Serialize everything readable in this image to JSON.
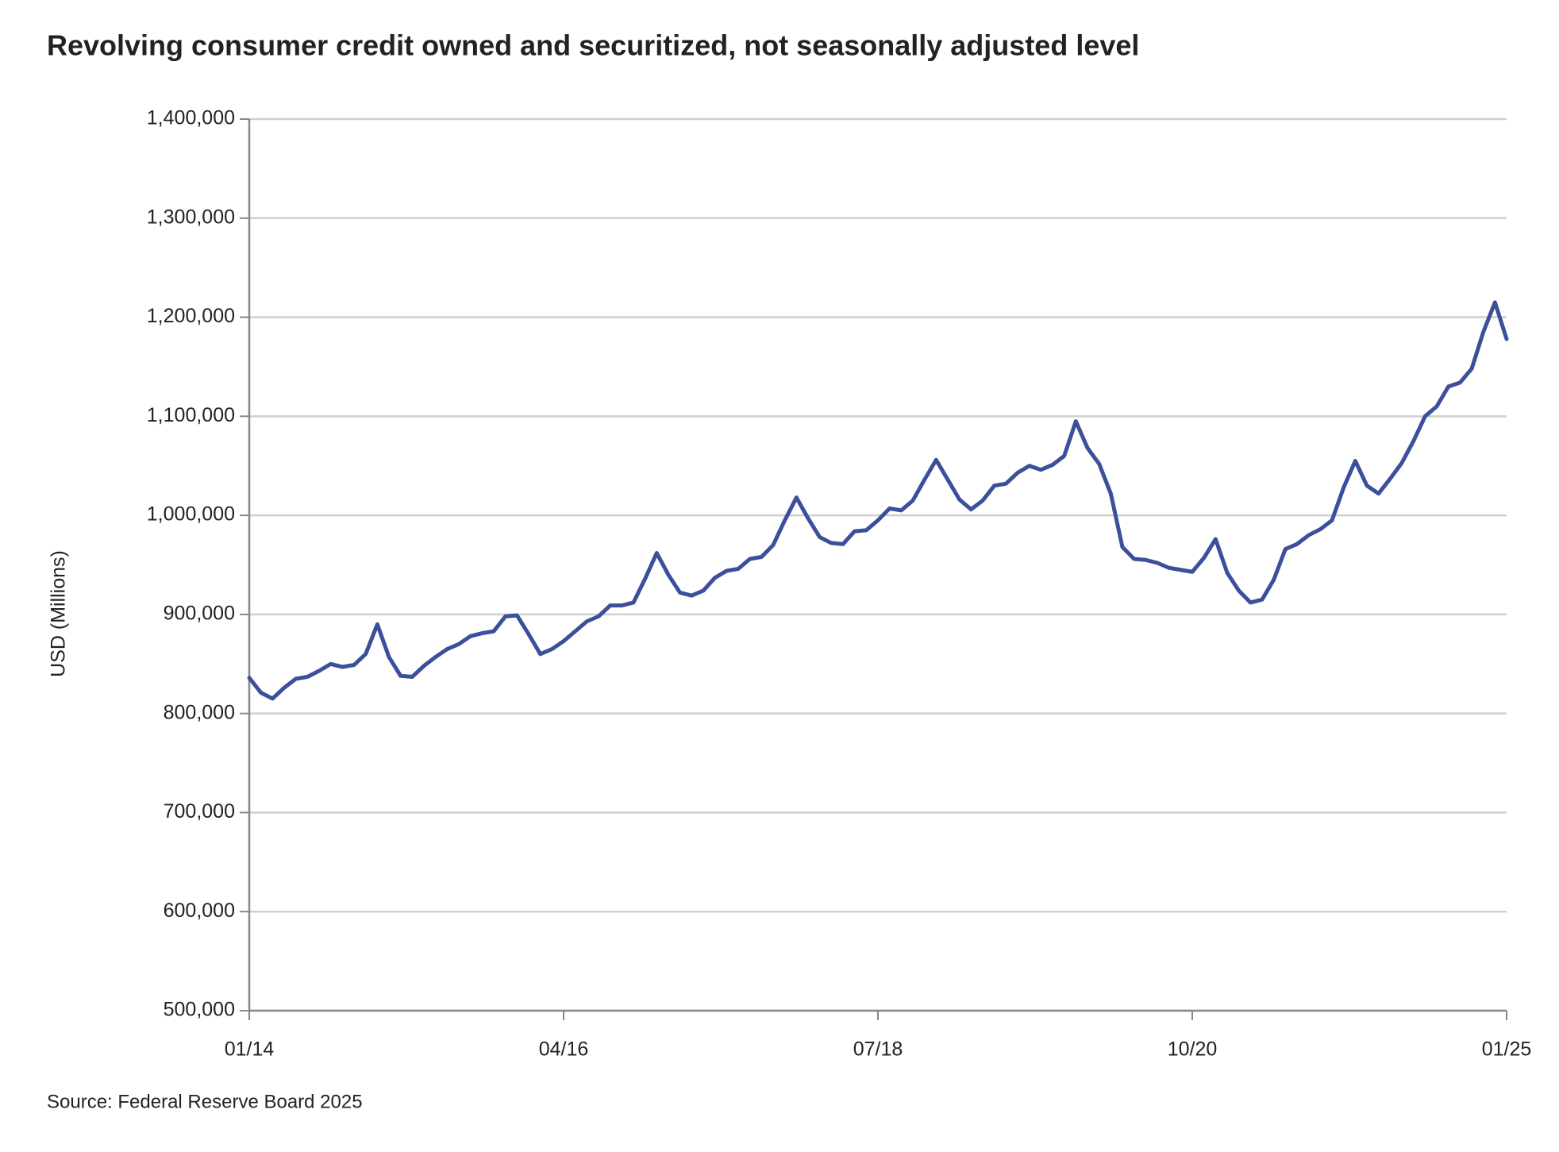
{
  "chart_data": {
    "type": "line",
    "title": "Revolving consumer credit owned and securitized, not seasonally adjusted level",
    "ylabel": "USD (Millions)",
    "source": "Source: Federal Reserve Board 2025",
    "categories": [
      "01/14",
      null,
      null,
      null,
      null,
      null,
      null,
      null,
      null,
      null,
      null,
      null,
      null,
      null,
      null,
      null,
      null,
      null,
      null,
      null,
      null,
      null,
      null,
      null,
      null,
      null,
      null,
      "04/16",
      null,
      null,
      null,
      null,
      null,
      null,
      null,
      null,
      null,
      null,
      null,
      null,
      null,
      null,
      null,
      null,
      null,
      null,
      null,
      null,
      null,
      null,
      null,
      null,
      null,
      null,
      "07/18",
      null,
      null,
      null,
      null,
      null,
      null,
      null,
      null,
      null,
      null,
      null,
      null,
      null,
      null,
      null,
      null,
      null,
      null,
      null,
      null,
      null,
      null,
      null,
      null,
      null,
      null,
      "10/20",
      null,
      null,
      null,
      null,
      null,
      null,
      null,
      null,
      null,
      null,
      null,
      null,
      null,
      null,
      null,
      null,
      null,
      null,
      null,
      null,
      null,
      null,
      null,
      null,
      null,
      null,
      "01/25"
    ],
    "series": [
      {
        "name": "Revolving consumer credit",
        "color": "#3b4f9b",
        "values": [
          836000,
          821000,
          815000,
          826000,
          835000,
          837000,
          843000,
          850000,
          847000,
          849000,
          860000,
          890000,
          857000,
          838000,
          837000,
          848000,
          857000,
          865000,
          870000,
          878000,
          881000,
          883000,
          898000,
          899000,
          880000,
          860000,
          865000,
          873000,
          883000,
          893000,
          898000,
          909000,
          909000,
          912000,
          936000,
          962000,
          940000,
          922000,
          919000,
          924000,
          937000,
          944000,
          946000,
          956000,
          958000,
          970000,
          995000,
          1018000,
          997000,
          978000,
          972000,
          971000,
          984000,
          985000,
          995000,
          1007000,
          1005000,
          1015000,
          1036000,
          1056000,
          1036000,
          1016000,
          1006000,
          1015000,
          1030000,
          1032000,
          1043000,
          1050000,
          1046000,
          1051000,
          1060000,
          1095000,
          1068000,
          1052000,
          1022000,
          968000,
          956000,
          955000,
          952000,
          947000,
          945000,
          943000,
          957000,
          976000,
          942000,
          924000,
          912000,
          915000,
          935000,
          966000,
          971000,
          980000,
          986000,
          995000,
          1028000,
          1055000,
          1030000,
          1022000,
          1037000,
          1053000,
          1075000,
          1100000,
          1110000,
          1130000,
          1134000,
          1148000,
          1185000,
          1215000,
          1178000
        ]
      }
    ],
    "ylim": [
      500000,
      1400000
    ],
    "yticks": [
      {
        "value": 500000,
        "label": "500,000"
      },
      {
        "value": 600000,
        "label": "600,000"
      },
      {
        "value": 700000,
        "label": "700,000"
      },
      {
        "value": 800000,
        "label": "800,000"
      },
      {
        "value": 900000,
        "label": "900,000"
      },
      {
        "value": 1000000,
        "label": "1,000,000"
      },
      {
        "value": 1100000,
        "label": "1,100,000"
      },
      {
        "value": 1200000,
        "label": "1,200,000"
      },
      {
        "value": 1300000,
        "label": "1,300,000"
      },
      {
        "value": 1400000,
        "label": "1,400,000"
      }
    ],
    "grid": true
  }
}
